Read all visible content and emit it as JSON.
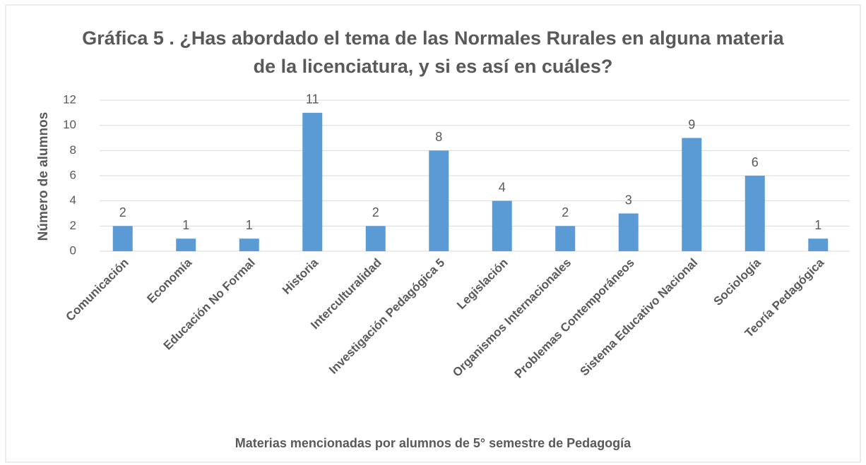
{
  "chart_data": {
    "type": "bar",
    "title": "Gráfica 5 . ¿Has abordado el tema de las Normales Rurales en alguna materia de la licenciatura, y si es así en cuáles?",
    "xlabel": "Materias  mencionadas por alumnos de 5° semestre de Pedagogía",
    "ylabel": "Número de  alumnos",
    "categories": [
      "Comunicación",
      "Economía",
      "Educación No Formal",
      "Historia",
      "Interculturalidad",
      "Investigación Pedagógica 5",
      "Legislación",
      "Organismos Internacionales",
      "Problemas Contemporáneos",
      "Sistema Educativo Nacional",
      "Sociología",
      "Teoría Pedagógica"
    ],
    "values": [
      2,
      1,
      1,
      11,
      2,
      8,
      4,
      2,
      3,
      9,
      6,
      1
    ],
    "color": "#5b9bd5",
    "ylim": [
      0,
      12
    ],
    "yticks": [
      0,
      2,
      4,
      6,
      8,
      10,
      12
    ],
    "grid": true
  }
}
